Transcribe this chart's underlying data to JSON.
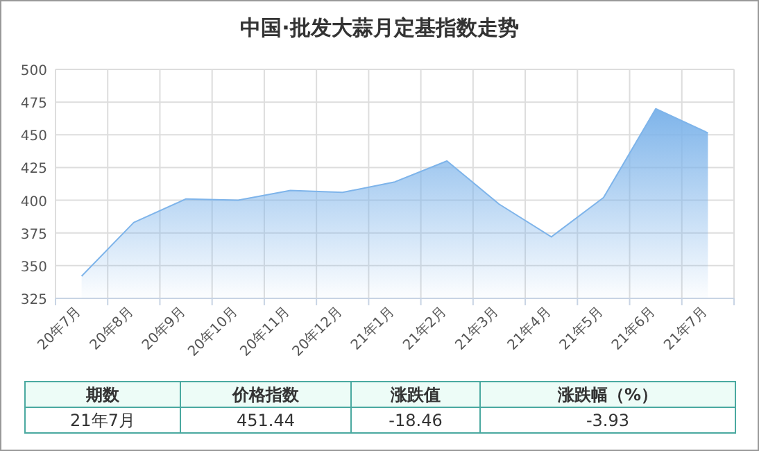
{
  "chart_data": {
    "type": "area",
    "title": "中国·批发大蒜月定基指数走势",
    "categories": [
      "20年7月",
      "20年8月",
      "20年9月",
      "20年10月",
      "20年11月",
      "20年12月",
      "21年1月",
      "21年2月",
      "21年3月",
      "21年4月",
      "21年5月",
      "21年6月",
      "21年7月"
    ],
    "series": [
      {
        "color": "#7eb4ea",
        "values": [
          342,
          383,
          401,
          400,
          407.5,
          406,
          414,
          430,
          397,
          372,
          402,
          469.9,
          451.44
        ]
      }
    ],
    "ylim": [
      325,
      500
    ],
    "yticks": [
      325,
      350,
      375,
      400,
      425,
      450,
      475,
      500
    ],
    "grid": true,
    "annotations": [
      "期数",
      "价格指数",
      "涨跌值",
      "涨跌幅（%）",
      "21年7月",
      "451.44",
      "-18.46",
      "-3.93"
    ]
  }
}
